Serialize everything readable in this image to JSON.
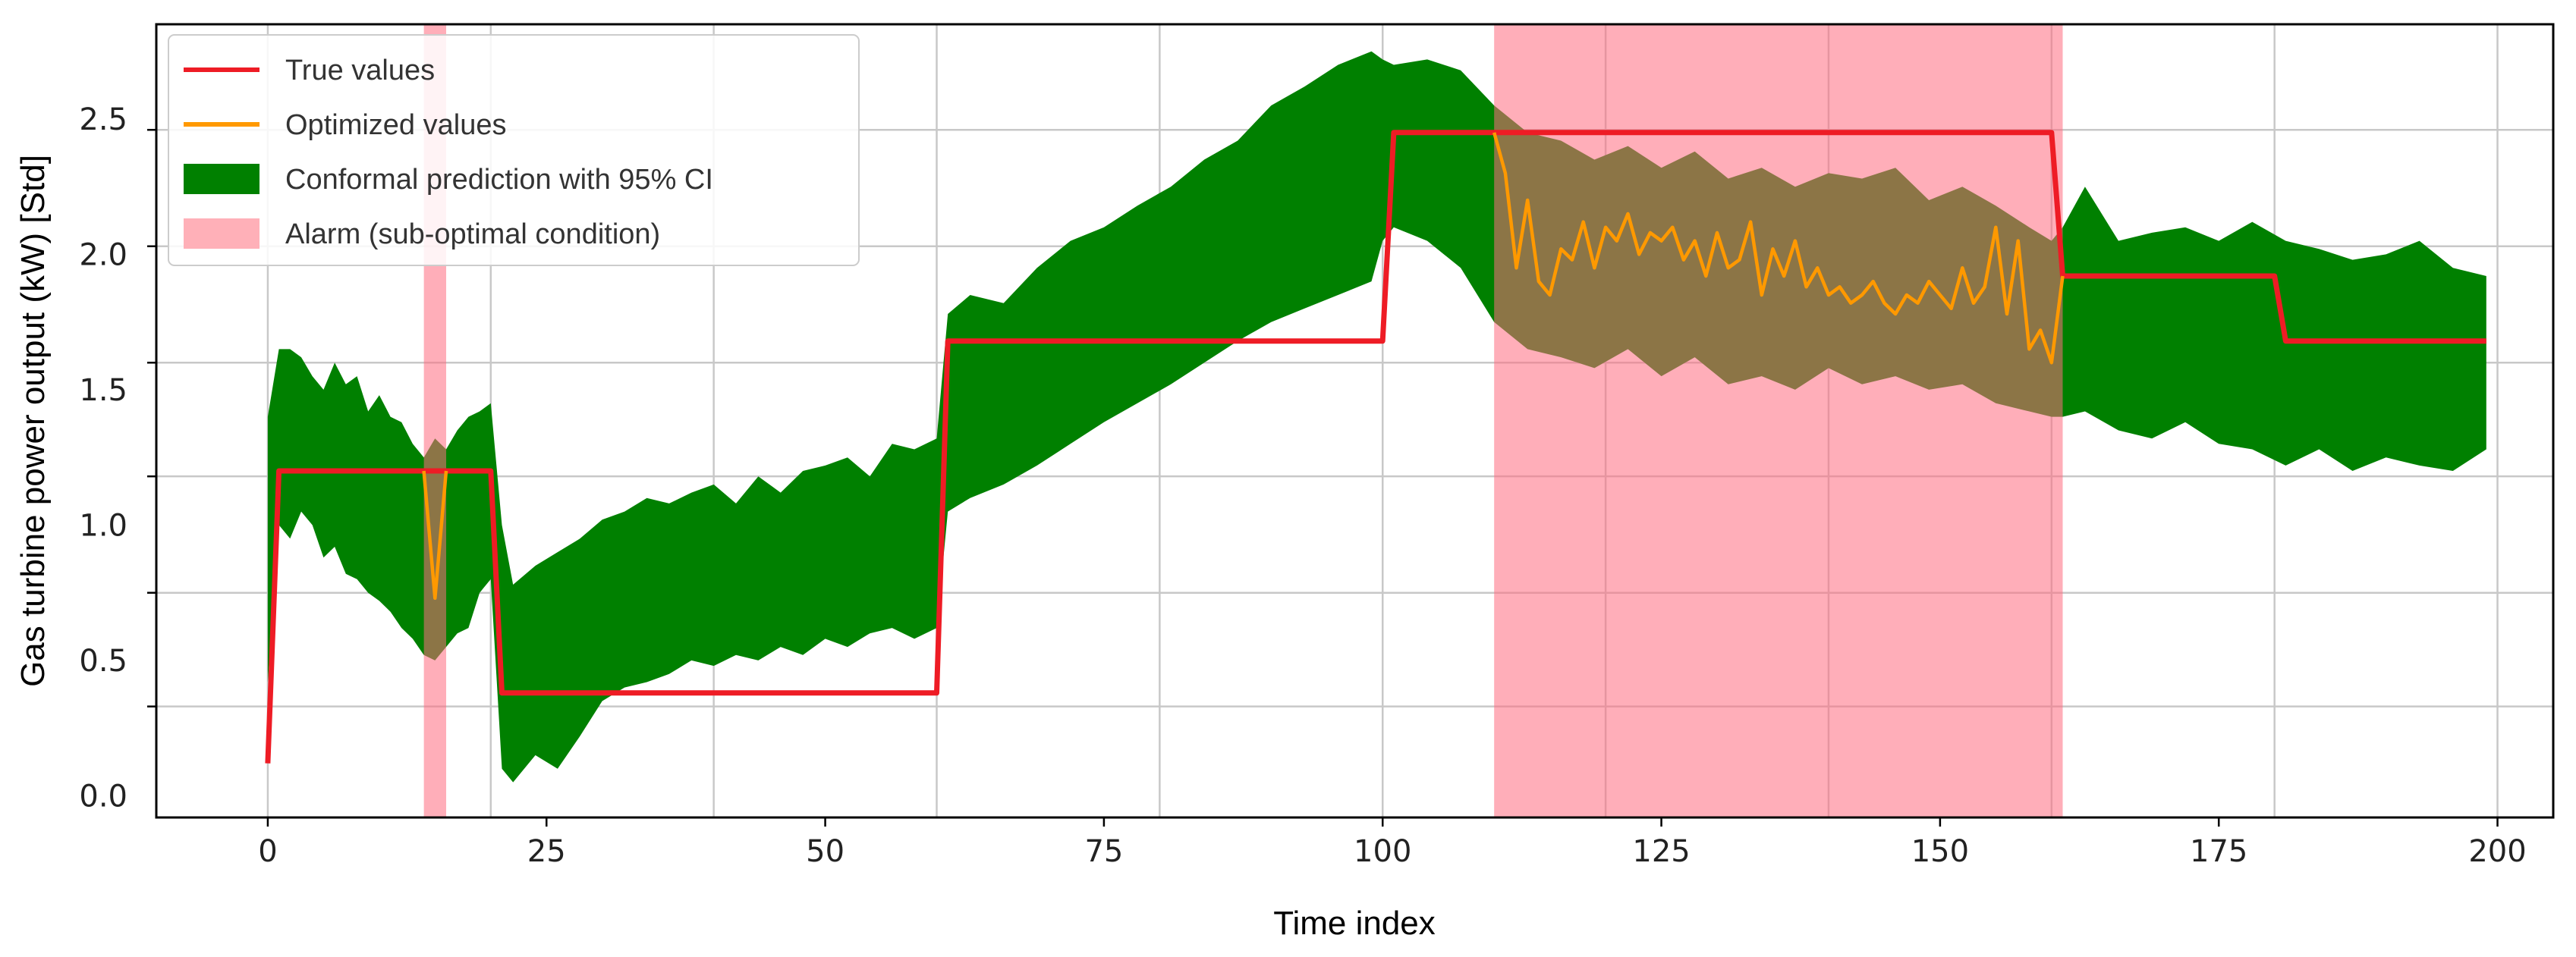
{
  "chart_data": {
    "type": "line",
    "title": "",
    "xlabel": "Time index",
    "ylabel": "Gas turbine power output (kW) [Std]",
    "xlim": [
      -10,
      205
    ],
    "ylim": [
      -0.08,
      2.85
    ],
    "x_ticks": [
      0,
      25,
      50,
      75,
      100,
      125,
      150,
      175,
      200
    ],
    "y_ticks": [
      0.0,
      0.5,
      1.0,
      1.5,
      2.0,
      2.5
    ],
    "x_tick_labels": [
      "0",
      "25",
      "50",
      "75",
      "100",
      "125",
      "150",
      "175",
      "200"
    ],
    "y_tick_labels": [
      "0.0",
      "0.5",
      "1.0",
      "1.5",
      "2.0",
      "2.5"
    ],
    "x_grid": [
      0,
      20,
      40,
      60,
      80,
      100,
      120,
      140,
      160,
      180,
      200
    ],
    "y_grid": [
      0.33,
      0.75,
      1.18,
      1.6,
      2.03,
      2.46
    ],
    "grid": true,
    "legend_position": "top-left",
    "legend": [
      {
        "label": "True values",
        "kind": "line",
        "color": "#ee1c25"
      },
      {
        "label": "Optimized values",
        "kind": "line",
        "color": "#ff9900"
      },
      {
        "label": "Conformal prediction with 95% CI",
        "kind": "patch",
        "color": "#008000"
      },
      {
        "label": "Alarm (sub-optimal condition)",
        "kind": "patch",
        "color": "#ffb0b8"
      }
    ],
    "alarms": [
      {
        "start": 14,
        "end": 16
      },
      {
        "start": 110,
        "end": 161
      }
    ],
    "true_values": {
      "name": "True values",
      "color": "#ee1c25",
      "x": [
        0,
        1,
        20,
        21,
        60,
        61,
        100,
        101,
        160,
        161,
        180,
        181,
        199
      ],
      "y": [
        0.12,
        1.2,
        1.2,
        0.38,
        0.38,
        1.68,
        1.68,
        2.45,
        2.45,
        1.92,
        1.92,
        1.68,
        1.68
      ]
    },
    "optimized_values": {
      "name": "Optimized values",
      "color": "#ff9900",
      "x": [
        14,
        15,
        16,
        110,
        111,
        112,
        113,
        114,
        115,
        116,
        117,
        118,
        119,
        120,
        121,
        122,
        123,
        124,
        125,
        126,
        127,
        128,
        129,
        130,
        131,
        132,
        133,
        134,
        135,
        136,
        137,
        138,
        139,
        140,
        141,
        142,
        143,
        144,
        145,
        146,
        147,
        148,
        149,
        150,
        151,
        152,
        153,
        154,
        155,
        156,
        157,
        158,
        159,
        160,
        161
      ],
      "y": [
        1.2,
        0.73,
        1.2,
        2.45,
        2.3,
        1.95,
        2.2,
        1.9,
        1.85,
        2.02,
        1.98,
        2.12,
        1.95,
        2.1,
        2.05,
        2.15,
        2.0,
        2.08,
        2.05,
        2.1,
        1.98,
        2.05,
        1.92,
        2.08,
        1.95,
        1.98,
        2.12,
        1.85,
        2.02,
        1.92,
        2.05,
        1.88,
        1.95,
        1.85,
        1.88,
        1.82,
        1.85,
        1.9,
        1.82,
        1.78,
        1.85,
        1.82,
        1.9,
        1.85,
        1.8,
        1.95,
        1.82,
        1.88,
        2.1,
        1.78,
        2.05,
        1.65,
        1.72,
        1.6,
        1.92
      ]
    },
    "ci_band": {
      "name": "Conformal prediction with 95% CI",
      "color": "#008000",
      "x": [
        0,
        1,
        2,
        3,
        4,
        5,
        6,
        7,
        8,
        9,
        10,
        11,
        12,
        13,
        14,
        15,
        16,
        17,
        18,
        19,
        20,
        21,
        22,
        24,
        26,
        28,
        30,
        32,
        34,
        36,
        38,
        40,
        42,
        44,
        46,
        48,
        50,
        52,
        54,
        56,
        58,
        60,
        61,
        63,
        66,
        69,
        72,
        75,
        78,
        81,
        84,
        87,
        90,
        93,
        96,
        99,
        100,
        101,
        104,
        107,
        110,
        113,
        116,
        119,
        122,
        125,
        128,
        131,
        134,
        137,
        140,
        143,
        146,
        149,
        152,
        155,
        158,
        160,
        161,
        163,
        166,
        169,
        172,
        175,
        178,
        181,
        184,
        187,
        190,
        193,
        196,
        199
      ],
      "upper": [
        1.4,
        1.65,
        1.65,
        1.62,
        1.55,
        1.5,
        1.6,
        1.52,
        1.55,
        1.42,
        1.48,
        1.4,
        1.38,
        1.3,
        1.25,
        1.32,
        1.28,
        1.35,
        1.4,
        1.42,
        1.45,
        1.0,
        0.78,
        0.85,
        0.9,
        0.95,
        1.02,
        1.05,
        1.1,
        1.08,
        1.12,
        1.15,
        1.08,
        1.18,
        1.12,
        1.2,
        1.22,
        1.25,
        1.18,
        1.3,
        1.28,
        1.32,
        1.78,
        1.85,
        1.82,
        1.95,
        2.05,
        2.1,
        2.18,
        2.25,
        2.35,
        2.42,
        2.55,
        2.62,
        2.7,
        2.75,
        2.72,
        2.7,
        2.72,
        2.68,
        2.55,
        2.45,
        2.42,
        2.35,
        2.4,
        2.32,
        2.38,
        2.28,
        2.32,
        2.25,
        2.3,
        2.28,
        2.32,
        2.2,
        2.25,
        2.18,
        2.1,
        2.05,
        2.1,
        2.25,
        2.05,
        2.08,
        2.1,
        2.05,
        2.12,
        2.05,
        2.02,
        1.98,
        2.0,
        2.05,
        1.95,
        1.92
      ],
      "lower": [
        0.42,
        1.0,
        0.95,
        1.05,
        1.0,
        0.88,
        0.92,
        0.82,
        0.8,
        0.75,
        0.72,
        0.68,
        0.62,
        0.58,
        0.52,
        0.5,
        0.55,
        0.6,
        0.62,
        0.75,
        0.8,
        0.1,
        0.05,
        0.15,
        0.1,
        0.22,
        0.35,
        0.4,
        0.42,
        0.45,
        0.5,
        0.48,
        0.52,
        0.5,
        0.55,
        0.52,
        0.58,
        0.55,
        0.6,
        0.62,
        0.58,
        0.62,
        1.05,
        1.1,
        1.15,
        1.22,
        1.3,
        1.38,
        1.45,
        1.52,
        1.6,
        1.68,
        1.75,
        1.8,
        1.85,
        1.9,
        2.05,
        2.1,
        2.05,
        1.95,
        1.75,
        1.65,
        1.62,
        1.58,
        1.65,
        1.55,
        1.62,
        1.52,
        1.55,
        1.5,
        1.58,
        1.52,
        1.55,
        1.5,
        1.52,
        1.45,
        1.42,
        1.4,
        1.4,
        1.42,
        1.35,
        1.32,
        1.38,
        1.3,
        1.28,
        1.22,
        1.28,
        1.2,
        1.25,
        1.22,
        1.2,
        1.28
      ]
    }
  }
}
